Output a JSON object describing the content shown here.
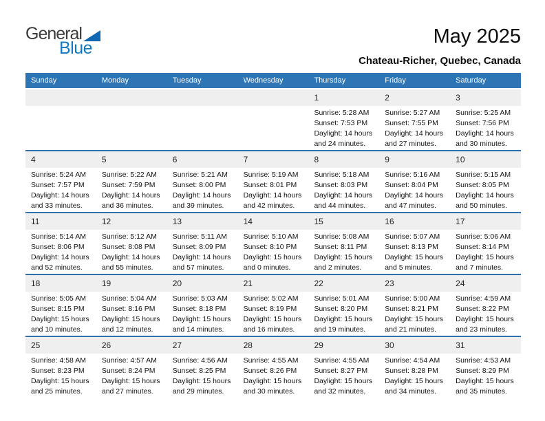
{
  "logo": {
    "general": "General",
    "blue": "Blue"
  },
  "title": "May 2025",
  "subtitle": "Chateau-Richer, Quebec, Canada",
  "weekday_headers": [
    "Sunday",
    "Monday",
    "Tuesday",
    "Wednesday",
    "Thursday",
    "Friday",
    "Saturday"
  ],
  "labels": {
    "sunrise": "Sunrise:",
    "sunset": "Sunset:",
    "daylight": "Daylight:"
  },
  "colors": {
    "header_bg": "#2E75B6",
    "separator": "#2C70AD",
    "strip_bg": "#EFEFEF",
    "logo_blue": "#1278C0",
    "logo_triangle": "#1068B2",
    "logo_dark": "#3B3B3B"
  },
  "weeks": [
    [
      null,
      null,
      null,
      null,
      {
        "day": "1",
        "sunrise": "5:28 AM",
        "sunset": "7:53 PM",
        "daylight_hours": "14 hours",
        "daylight_rest": "and 24 minutes."
      },
      {
        "day": "2",
        "sunrise": "5:27 AM",
        "sunset": "7:55 PM",
        "daylight_hours": "14 hours",
        "daylight_rest": "and 27 minutes."
      },
      {
        "day": "3",
        "sunrise": "5:25 AM",
        "sunset": "7:56 PM",
        "daylight_hours": "14 hours",
        "daylight_rest": "and 30 minutes."
      }
    ],
    [
      {
        "day": "4",
        "sunrise": "5:24 AM",
        "sunset": "7:57 PM",
        "daylight_hours": "14 hours",
        "daylight_rest": "and 33 minutes."
      },
      {
        "day": "5",
        "sunrise": "5:22 AM",
        "sunset": "7:59 PM",
        "daylight_hours": "14 hours",
        "daylight_rest": "and 36 minutes."
      },
      {
        "day": "6",
        "sunrise": "5:21 AM",
        "sunset": "8:00 PM",
        "daylight_hours": "14 hours",
        "daylight_rest": "and 39 minutes."
      },
      {
        "day": "7",
        "sunrise": "5:19 AM",
        "sunset": "8:01 PM",
        "daylight_hours": "14 hours",
        "daylight_rest": "and 42 minutes."
      },
      {
        "day": "8",
        "sunrise": "5:18 AM",
        "sunset": "8:03 PM",
        "daylight_hours": "14 hours",
        "daylight_rest": "and 44 minutes."
      },
      {
        "day": "9",
        "sunrise": "5:16 AM",
        "sunset": "8:04 PM",
        "daylight_hours": "14 hours",
        "daylight_rest": "and 47 minutes."
      },
      {
        "day": "10",
        "sunrise": "5:15 AM",
        "sunset": "8:05 PM",
        "daylight_hours": "14 hours",
        "daylight_rest": "and 50 minutes."
      }
    ],
    [
      {
        "day": "11",
        "sunrise": "5:14 AM",
        "sunset": "8:06 PM",
        "daylight_hours": "14 hours",
        "daylight_rest": "and 52 minutes."
      },
      {
        "day": "12",
        "sunrise": "5:12 AM",
        "sunset": "8:08 PM",
        "daylight_hours": "14 hours",
        "daylight_rest": "and 55 minutes."
      },
      {
        "day": "13",
        "sunrise": "5:11 AM",
        "sunset": "8:09 PM",
        "daylight_hours": "14 hours",
        "daylight_rest": "and 57 minutes."
      },
      {
        "day": "14",
        "sunrise": "5:10 AM",
        "sunset": "8:10 PM",
        "daylight_hours": "15 hours",
        "daylight_rest": "and 0 minutes."
      },
      {
        "day": "15",
        "sunrise": "5:08 AM",
        "sunset": "8:11 PM",
        "daylight_hours": "15 hours",
        "daylight_rest": "and 2 minutes."
      },
      {
        "day": "16",
        "sunrise": "5:07 AM",
        "sunset": "8:13 PM",
        "daylight_hours": "15 hours",
        "daylight_rest": "and 5 minutes."
      },
      {
        "day": "17",
        "sunrise": "5:06 AM",
        "sunset": "8:14 PM",
        "daylight_hours": "15 hours",
        "daylight_rest": "and 7 minutes."
      }
    ],
    [
      {
        "day": "18",
        "sunrise": "5:05 AM",
        "sunset": "8:15 PM",
        "daylight_hours": "15 hours",
        "daylight_rest": "and 10 minutes."
      },
      {
        "day": "19",
        "sunrise": "5:04 AM",
        "sunset": "8:16 PM",
        "daylight_hours": "15 hours",
        "daylight_rest": "and 12 minutes."
      },
      {
        "day": "20",
        "sunrise": "5:03 AM",
        "sunset": "8:18 PM",
        "daylight_hours": "15 hours",
        "daylight_rest": "and 14 minutes."
      },
      {
        "day": "21",
        "sunrise": "5:02 AM",
        "sunset": "8:19 PM",
        "daylight_hours": "15 hours",
        "daylight_rest": "and 16 minutes."
      },
      {
        "day": "22",
        "sunrise": "5:01 AM",
        "sunset": "8:20 PM",
        "daylight_hours": "15 hours",
        "daylight_rest": "and 19 minutes."
      },
      {
        "day": "23",
        "sunrise": "5:00 AM",
        "sunset": "8:21 PM",
        "daylight_hours": "15 hours",
        "daylight_rest": "and 21 minutes."
      },
      {
        "day": "24",
        "sunrise": "4:59 AM",
        "sunset": "8:22 PM",
        "daylight_hours": "15 hours",
        "daylight_rest": "and 23 minutes."
      }
    ],
    [
      {
        "day": "25",
        "sunrise": "4:58 AM",
        "sunset": "8:23 PM",
        "daylight_hours": "15 hours",
        "daylight_rest": "and 25 minutes."
      },
      {
        "day": "26",
        "sunrise": "4:57 AM",
        "sunset": "8:24 PM",
        "daylight_hours": "15 hours",
        "daylight_rest": "and 27 minutes."
      },
      {
        "day": "27",
        "sunrise": "4:56 AM",
        "sunset": "8:25 PM",
        "daylight_hours": "15 hours",
        "daylight_rest": "and 29 minutes."
      },
      {
        "day": "28",
        "sunrise": "4:55 AM",
        "sunset": "8:26 PM",
        "daylight_hours": "15 hours",
        "daylight_rest": "and 30 minutes."
      },
      {
        "day": "29",
        "sunrise": "4:55 AM",
        "sunset": "8:27 PM",
        "daylight_hours": "15 hours",
        "daylight_rest": "and 32 minutes."
      },
      {
        "day": "30",
        "sunrise": "4:54 AM",
        "sunset": "8:28 PM",
        "daylight_hours": "15 hours",
        "daylight_rest": "and 34 minutes."
      },
      {
        "day": "31",
        "sunrise": "4:53 AM",
        "sunset": "8:29 PM",
        "daylight_hours": "15 hours",
        "daylight_rest": "and 35 minutes."
      }
    ]
  ]
}
